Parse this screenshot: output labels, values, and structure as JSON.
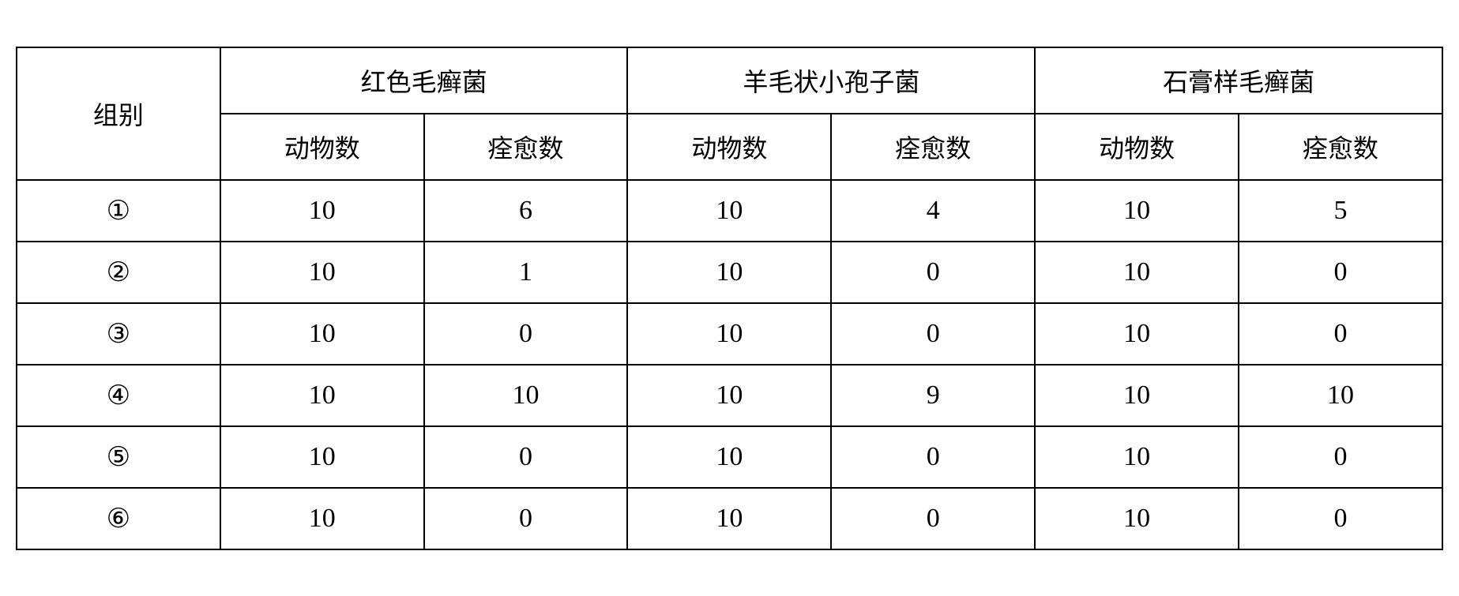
{
  "table": {
    "headers": {
      "group": "组别",
      "fungi": [
        {
          "name": "红色毛癣菌",
          "sub1": "动物数",
          "sub2": "痊愈数"
        },
        {
          "name": "羊毛状小孢子菌",
          "sub1": "动物数",
          "sub2": "痊愈数"
        },
        {
          "name": "石膏样毛癣菌",
          "sub1": "动物数",
          "sub2": "痊愈数"
        }
      ]
    },
    "rows": [
      {
        "group": "①",
        "values": [
          "10",
          "6",
          "10",
          "4",
          "10",
          "5"
        ]
      },
      {
        "group": "②",
        "values": [
          "10",
          "1",
          "10",
          "0",
          "10",
          "0"
        ]
      },
      {
        "group": "③",
        "values": [
          "10",
          "0",
          "10",
          "0",
          "10",
          "0"
        ]
      },
      {
        "group": "④",
        "values": [
          "10",
          "10",
          "10",
          "9",
          "10",
          "10"
        ]
      },
      {
        "group": "⑤",
        "values": [
          "10",
          "0",
          "10",
          "0",
          "10",
          "0"
        ]
      },
      {
        "group": "⑥",
        "values": [
          "10",
          "0",
          "10",
          "0",
          "10",
          "0"
        ]
      }
    ],
    "styling": {
      "border_color": "#000000",
      "border_width": "2px",
      "background_color": "#ffffff",
      "text_color": "#000000",
      "header_font": "SimSun",
      "data_font": "Times New Roman",
      "header_fontsize": 32,
      "data_fontsize": 34,
      "cell_padding": "18px 8px"
    }
  }
}
